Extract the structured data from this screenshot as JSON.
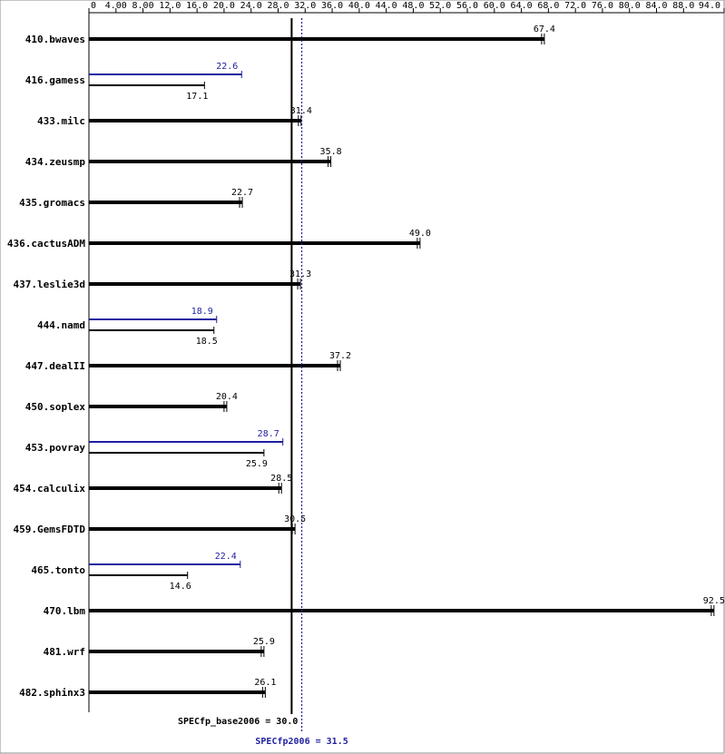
{
  "chart_data": {
    "type": "bar",
    "categories": [
      "410.bwaves",
      "416.gamess",
      "433.milc",
      "434.zeusmp",
      "435.gromacs",
      "436.cactusADM",
      "437.leslie3d",
      "444.namd",
      "447.dealII",
      "450.soplex",
      "453.povray",
      "454.calculix",
      "459.GemsFDTD",
      "465.tonto",
      "470.lbm",
      "481.wrf",
      "482.sphinx3"
    ],
    "series": [
      {
        "color": "#000000",
        "values": [
          67.4,
          17.1,
          31.4,
          35.8,
          22.7,
          49.0,
          31.3,
          18.5,
          37.2,
          20.4,
          25.9,
          28.5,
          30.5,
          14.6,
          92.5,
          25.9,
          26.1
        ],
        "value_labels": [
          "67.4",
          "17.1",
          "31.4",
          "35.8",
          "22.7",
          "49.0",
          "31.3",
          "18.5",
          "37.2",
          "20.4",
          "25.9",
          "28.5",
          "30.5",
          "14.6",
          "92.5",
          "25.9",
          "26.1"
        ]
      },
      {
        "color": "#1f1f9f",
        "values": [
          null,
          22.6,
          null,
          null,
          null,
          null,
          null,
          18.9,
          null,
          null,
          28.7,
          null,
          null,
          22.4,
          null,
          null,
          null
        ],
        "value_labels": [
          null,
          "22.6",
          null,
          null,
          null,
          null,
          null,
          "18.9",
          null,
          null,
          "28.7",
          null,
          null,
          "22.4",
          null,
          null,
          null
        ]
      }
    ],
    "xlim": [
      0,
      94
    ],
    "xticks": [
      0,
      {
        "value": 4,
        "label": "4.00"
      },
      {
        "value": 8,
        "label": "8.00"
      },
      {
        "value": 12,
        "label": "12.0"
      },
      {
        "value": 16,
        "label": "16.0"
      },
      {
        "value": 20,
        "label": "20.0"
      },
      {
        "value": 24,
        "label": "24.0"
      },
      {
        "value": 28,
        "label": "28.0"
      },
      {
        "value": 32,
        "label": "32.0"
      },
      {
        "value": 36,
        "label": "36.0"
      },
      {
        "value": 40,
        "label": "40.0"
      },
      {
        "value": 44,
        "label": "44.0"
      },
      {
        "value": 48,
        "label": "48.0"
      },
      {
        "value": 52,
        "label": "52.0"
      },
      {
        "value": 56,
        "label": "56.0"
      },
      {
        "value": 60,
        "label": "60.0"
      },
      {
        "value": 64,
        "label": "64.0"
      },
      {
        "value": 68,
        "label": "68.0"
      },
      {
        "value": 72,
        "label": "72.0"
      },
      {
        "value": 76,
        "label": "76.0"
      },
      {
        "value": 80,
        "label": "80.0"
      },
      {
        "value": 84,
        "label": "84.0"
      },
      {
        "value": 88,
        "label": "88.0"
      },
      {
        "value": 94,
        "label": "94.0"
      }
    ],
    "reference_lines": [
      {
        "label": "SPECfp_base2006 = 30.0",
        "value": 30.0,
        "color": "#000000",
        "style": "solid"
      },
      {
        "label": "SPECfp2006 = 31.5",
        "value": 31.5,
        "color": "#1f1f9f",
        "style": "dotted"
      }
    ]
  }
}
